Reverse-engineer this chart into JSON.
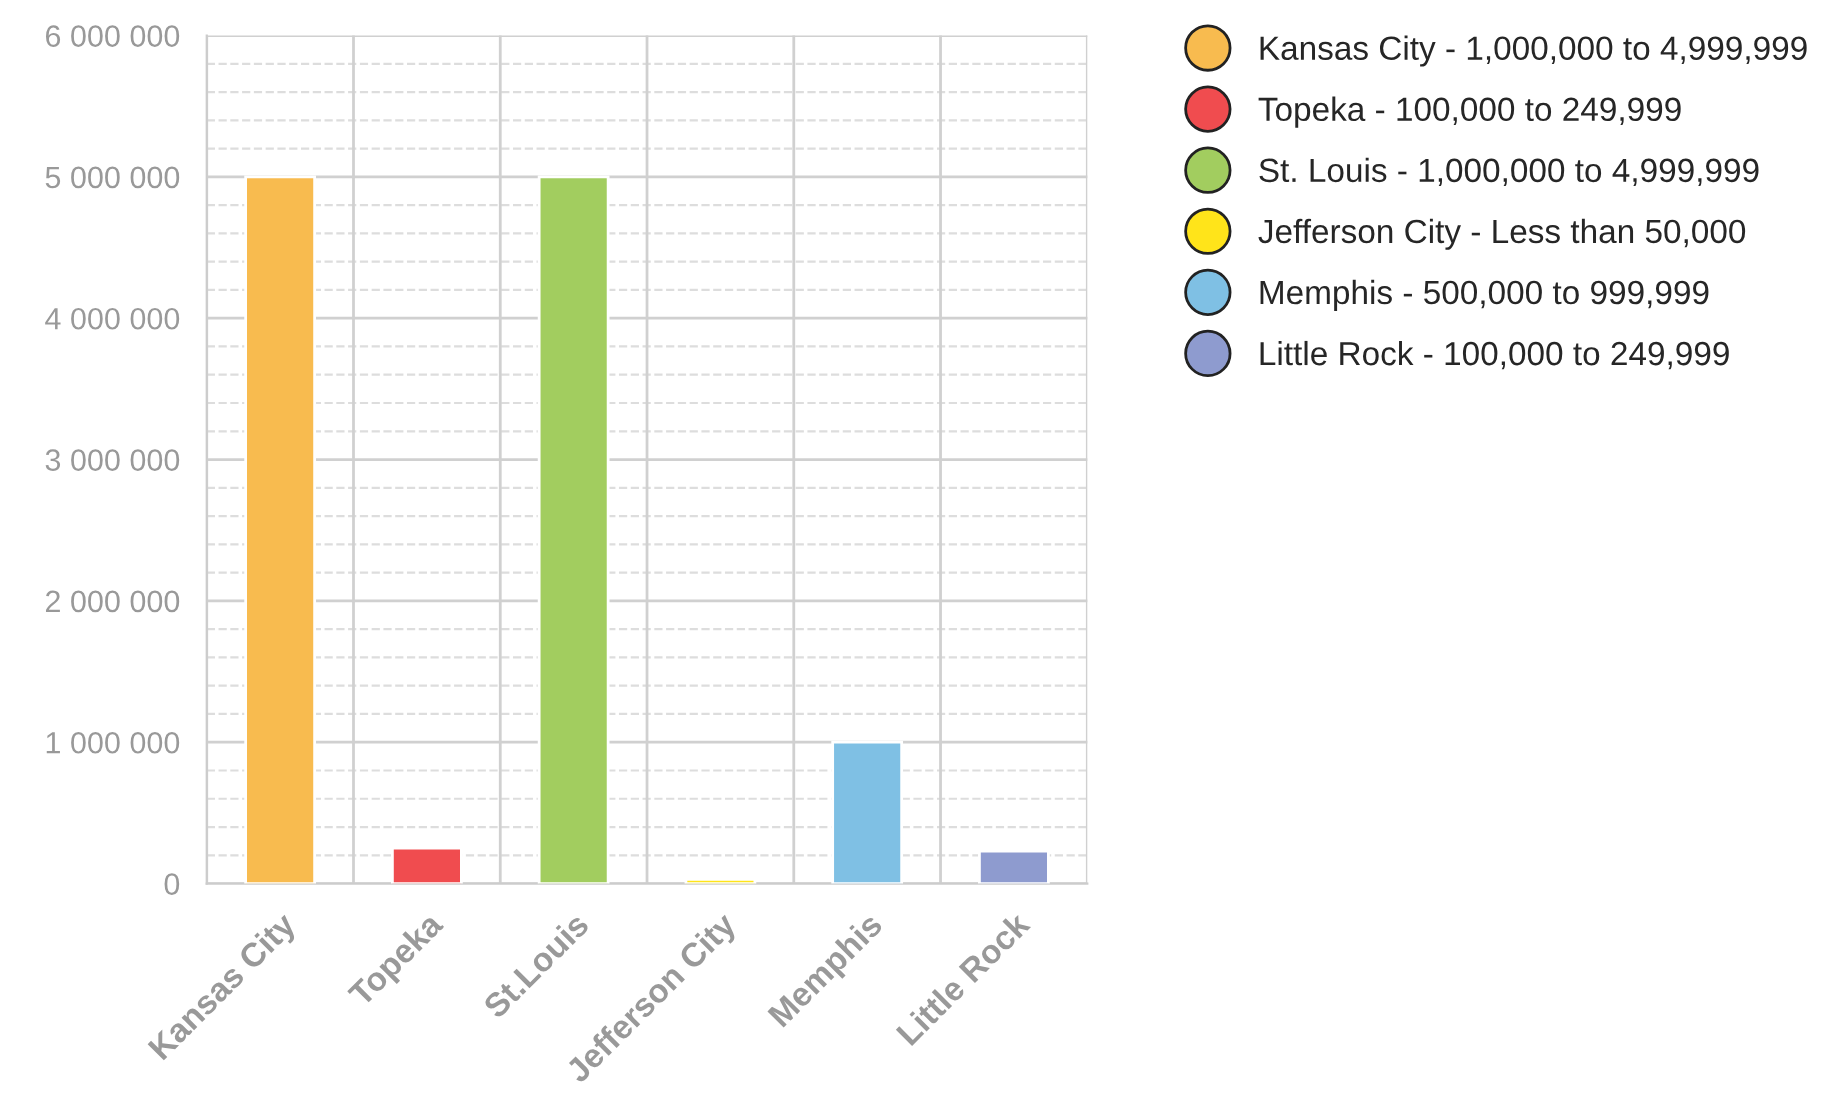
{
  "chart_data": {
    "type": "bar",
    "categories": [
      "Kansas City",
      "Topeka",
      "St.Louis",
      "Jefferson City",
      "Memphis",
      "Little Rock"
    ],
    "series": [
      {
        "name": "Kansas City - 1,000,000 to 4,999,999",
        "color": "#f8bb4f",
        "values": [
          5000000,
          null,
          null,
          null,
          null,
          null
        ]
      },
      {
        "name": "Topeka - 100,000 to 249,999",
        "color": "#f04c4f",
        "values": [
          null,
          250000,
          null,
          null,
          null,
          null
        ]
      },
      {
        "name": "St. Louis - 1,000,000 to 4,999,999",
        "color": "#a2cd5f",
        "values": [
          null,
          null,
          5000000,
          null,
          null,
          null
        ]
      },
      {
        "name": "Jefferson City - Less than 50,000",
        "color": "#ffe41a",
        "values": [
          null,
          null,
          null,
          30000,
          null,
          null
        ]
      },
      {
        "name": "Memphis - 500,000 to 999,999",
        "color": "#7fc0e4",
        "values": [
          null,
          null,
          null,
          null,
          1000000,
          null
        ]
      },
      {
        "name": "Little Rock - 100,000 to 249,999",
        "color": "#8e9bcf",
        "values": [
          null,
          null,
          null,
          null,
          null,
          230000
        ]
      }
    ],
    "ylim": [
      0,
      6000000
    ],
    "yticks": [
      {
        "value": 0,
        "label": "0"
      },
      {
        "value": 1000000,
        "label": "1 000 000"
      },
      {
        "value": 2000000,
        "label": "2 000 000"
      },
      {
        "value": 3000000,
        "label": "3 000 000"
      },
      {
        "value": 4000000,
        "label": "4 000 000"
      },
      {
        "value": 5000000,
        "label": "5 000 000"
      },
      {
        "value": 6000000,
        "label": "6 000 000"
      }
    ],
    "grid": true,
    "legend": "top right"
  }
}
